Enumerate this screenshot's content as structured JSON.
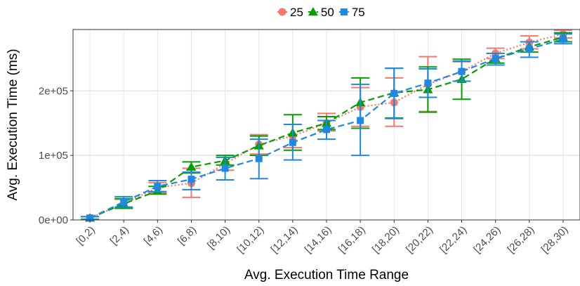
{
  "chart_data": {
    "type": "line",
    "title": "",
    "xlabel": "Avg. Execution Time Range",
    "ylabel": "Avg. Execution Time (ms)",
    "categories": [
      "[0,2)",
      "[2,4)",
      "[4,6)",
      "[6,8)",
      "[8,10)",
      "[10,12)",
      "[12,14)",
      "[14,16)",
      "[16,18)",
      "[18,20)",
      "[20,22)",
      "[22,24)",
      "[24,26)",
      "[26,28)",
      "[28,30)"
    ],
    "ylim": [
      0,
      295000
    ],
    "yticks": [
      0,
      100000,
      200000
    ],
    "ytick_labels": [
      "0e+00",
      "1e+05",
      "2e+05"
    ],
    "grid": true,
    "legend_position": "top",
    "series": [
      {
        "name": "25",
        "color": "#F8766D",
        "marker": "circle",
        "line": "dotted",
        "values": [
          3000,
          25000,
          50000,
          57000,
          87000,
          117000,
          130000,
          150000,
          175000,
          182000,
          210000,
          230000,
          258000,
          275000,
          288000
        ],
        "err_low": [
          1000,
          18000,
          42000,
          35000,
          77000,
          102000,
          112000,
          138000,
          145000,
          145000,
          168000,
          215000,
          250000,
          265000,
          282000
        ],
        "err_high": [
          5000,
          32000,
          58000,
          80000,
          97000,
          132000,
          148000,
          165000,
          205000,
          220000,
          253000,
          245000,
          266000,
          285000,
          294000
        ]
      },
      {
        "name": "50",
        "color": "#00A000",
        "marker": "triangle",
        "line": "dashed",
        "values": [
          3000,
          25000,
          45000,
          82000,
          92000,
          115000,
          135000,
          150000,
          182000,
          197000,
          202000,
          218000,
          250000,
          268000,
          283000
        ],
        "err_low": [
          1000,
          18000,
          40000,
          73000,
          85000,
          100000,
          108000,
          140000,
          142000,
          158000,
          167000,
          187000,
          243000,
          260000,
          276000
        ],
        "err_high": [
          5000,
          33000,
          52000,
          90000,
          100000,
          130000,
          163000,
          160000,
          220000,
          235000,
          237000,
          249000,
          258000,
          276000,
          290000
        ]
      },
      {
        "name": "75",
        "color": "#1E88E5",
        "marker": "square",
        "line": "dashed",
        "values": [
          3000,
          28000,
          52000,
          63000,
          80000,
          95000,
          120000,
          140000,
          154000,
          196000,
          212000,
          230000,
          250000,
          265000,
          280000
        ],
        "err_low": [
          1000,
          20000,
          44000,
          47000,
          62000,
          64000,
          93000,
          125000,
          100000,
          157000,
          190000,
          215000,
          240000,
          252000,
          273000
        ],
        "err_high": [
          5000,
          36000,
          61000,
          74000,
          97000,
          125000,
          148000,
          154000,
          210000,
          235000,
          234000,
          246000,
          258000,
          276000,
          288000
        ]
      }
    ]
  }
}
